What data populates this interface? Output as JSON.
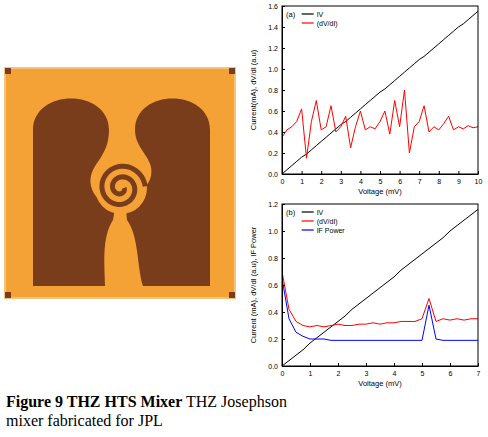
{
  "caption": {
    "label": "Figure 9 THZ HTS Mixer",
    "text": "THZ Josephson mixer fabricated for JPL"
  },
  "chart_data": [
    {
      "type": "line",
      "title": "(a)",
      "x_label": "Voltage (mV)",
      "y_label": "Current(mA), dV/dI (a.u)",
      "x": [
        0,
        0.25,
        0.5,
        0.75,
        1,
        1.25,
        1.5,
        1.75,
        2,
        2.25,
        2.5,
        2.75,
        3,
        3.25,
        3.5,
        3.75,
        4,
        4.25,
        4.5,
        4.75,
        5,
        5.25,
        5.5,
        5.75,
        6,
        6.25,
        6.5,
        6.75,
        7,
        7.25,
        7.5,
        7.75,
        8,
        8.25,
        8.5,
        8.75,
        9,
        9.25,
        9.5,
        9.75,
        10
      ],
      "series": [
        {
          "name": "IV",
          "color": "#000000",
          "values": [
            0,
            0.04,
            0.08,
            0.12,
            0.16,
            0.19,
            0.23,
            0.27,
            0.31,
            0.35,
            0.39,
            0.43,
            0.47,
            0.5,
            0.54,
            0.58,
            0.62,
            0.66,
            0.7,
            0.74,
            0.78,
            0.81,
            0.85,
            0.89,
            0.93,
            0.97,
            1.01,
            1.05,
            1.09,
            1.12,
            1.16,
            1.2,
            1.24,
            1.28,
            1.32,
            1.36,
            1.4,
            1.43,
            1.47,
            1.51,
            1.55
          ]
        },
        {
          "name": "(dV/dI)",
          "color": "#ff0000",
          "values": [
            0.35,
            0.42,
            0.45,
            0.5,
            0.62,
            0.15,
            0.5,
            0.7,
            0.42,
            0.45,
            0.65,
            0.4,
            0.45,
            0.55,
            0.25,
            0.45,
            0.6,
            0.42,
            0.45,
            0.43,
            0.5,
            0.6,
            0.38,
            0.7,
            0.45,
            0.8,
            0.2,
            0.45,
            0.5,
            0.65,
            0.4,
            0.45,
            0.42,
            0.48,
            0.55,
            0.42,
            0.45,
            0.43,
            0.46,
            0.44,
            0.45
          ]
        }
      ],
      "xlim": [
        0,
        10
      ],
      "xticks": [
        0,
        1,
        2,
        3,
        4,
        5,
        6,
        7,
        8,
        9,
        10
      ],
      "ylim": [
        0,
        1.6
      ],
      "yticks": [
        {
          "value": 0,
          "label": "0.0"
        },
        {
          "value": 0.2,
          "label": "0.2"
        },
        {
          "value": 0.4,
          "label": "0.4"
        },
        {
          "value": 0.6,
          "label": "0.6"
        },
        {
          "value": 0.8,
          "label": "0.8"
        },
        {
          "value": 1.0,
          "label": "1.0"
        },
        {
          "value": 1.2,
          "label": "1.2"
        },
        {
          "value": 1.4,
          "label": "1.4"
        },
        {
          "value": 1.6,
          "label": "1.6"
        }
      ],
      "grid": false,
      "legend": "upper left"
    },
    {
      "type": "line",
      "title": "(b)",
      "x_label": "Voltage (mV)",
      "y_label": "Current (mA), dV/dI (a.u), IF Power",
      "x": [
        0,
        0.25,
        0.5,
        0.75,
        1,
        1.25,
        1.5,
        1.75,
        2,
        2.25,
        2.5,
        2.75,
        3,
        3.25,
        3.5,
        3.75,
        4,
        4.25,
        4.5,
        4.75,
        5,
        5.25,
        5.5,
        5.75,
        6,
        6.25,
        6.5,
        6.75,
        7
      ],
      "series": [
        {
          "name": "IV",
          "color": "#000000",
          "values": [
            0,
            0.04,
            0.08,
            0.12,
            0.17,
            0.21,
            0.25,
            0.29,
            0.33,
            0.37,
            0.42,
            0.46,
            0.5,
            0.54,
            0.58,
            0.62,
            0.66,
            0.71,
            0.75,
            0.79,
            0.83,
            0.87,
            0.91,
            0.95,
            1.0,
            1.04,
            1.08,
            1.12,
            1.16
          ]
        },
        {
          "name": "(dV/dI)",
          "color": "#ff0000",
          "values": [
            0.7,
            0.42,
            0.33,
            0.3,
            0.29,
            0.3,
            0.29,
            0.3,
            0.31,
            0.3,
            0.3,
            0.31,
            0.31,
            0.32,
            0.31,
            0.32,
            0.32,
            0.33,
            0.33,
            0.33,
            0.35,
            0.5,
            0.33,
            0.35,
            0.34,
            0.35,
            0.34,
            0.35,
            0.35
          ]
        },
        {
          "name": "IF Power",
          "color": "#0000ff",
          "values": [
            0.65,
            0.35,
            0.25,
            0.22,
            0.2,
            0.2,
            0.2,
            0.19,
            0.19,
            0.19,
            0.19,
            0.19,
            0.19,
            0.19,
            0.19,
            0.19,
            0.19,
            0.19,
            0.19,
            0.19,
            0.19,
            0.45,
            0.2,
            0.19,
            0.19,
            0.19,
            0.19,
            0.19,
            0.19
          ]
        }
      ],
      "xlim": [
        0,
        7
      ],
      "xticks": [
        0,
        1,
        2,
        3,
        4,
        5,
        6,
        7
      ],
      "ylim": [
        0,
        1.2
      ],
      "yticks": [
        {
          "value": 0,
          "label": "0.0"
        },
        {
          "value": 0.2,
          "label": "0.2"
        },
        {
          "value": 0.4,
          "label": "0.4"
        },
        {
          "value": 0.6,
          "label": "0.6"
        },
        {
          "value": 0.8,
          "label": "0.8"
        },
        {
          "value": 1.0,
          "label": "1.0"
        },
        {
          "value": 1.2,
          "label": "1.2"
        }
      ],
      "grid": false,
      "legend": "upper left"
    }
  ]
}
